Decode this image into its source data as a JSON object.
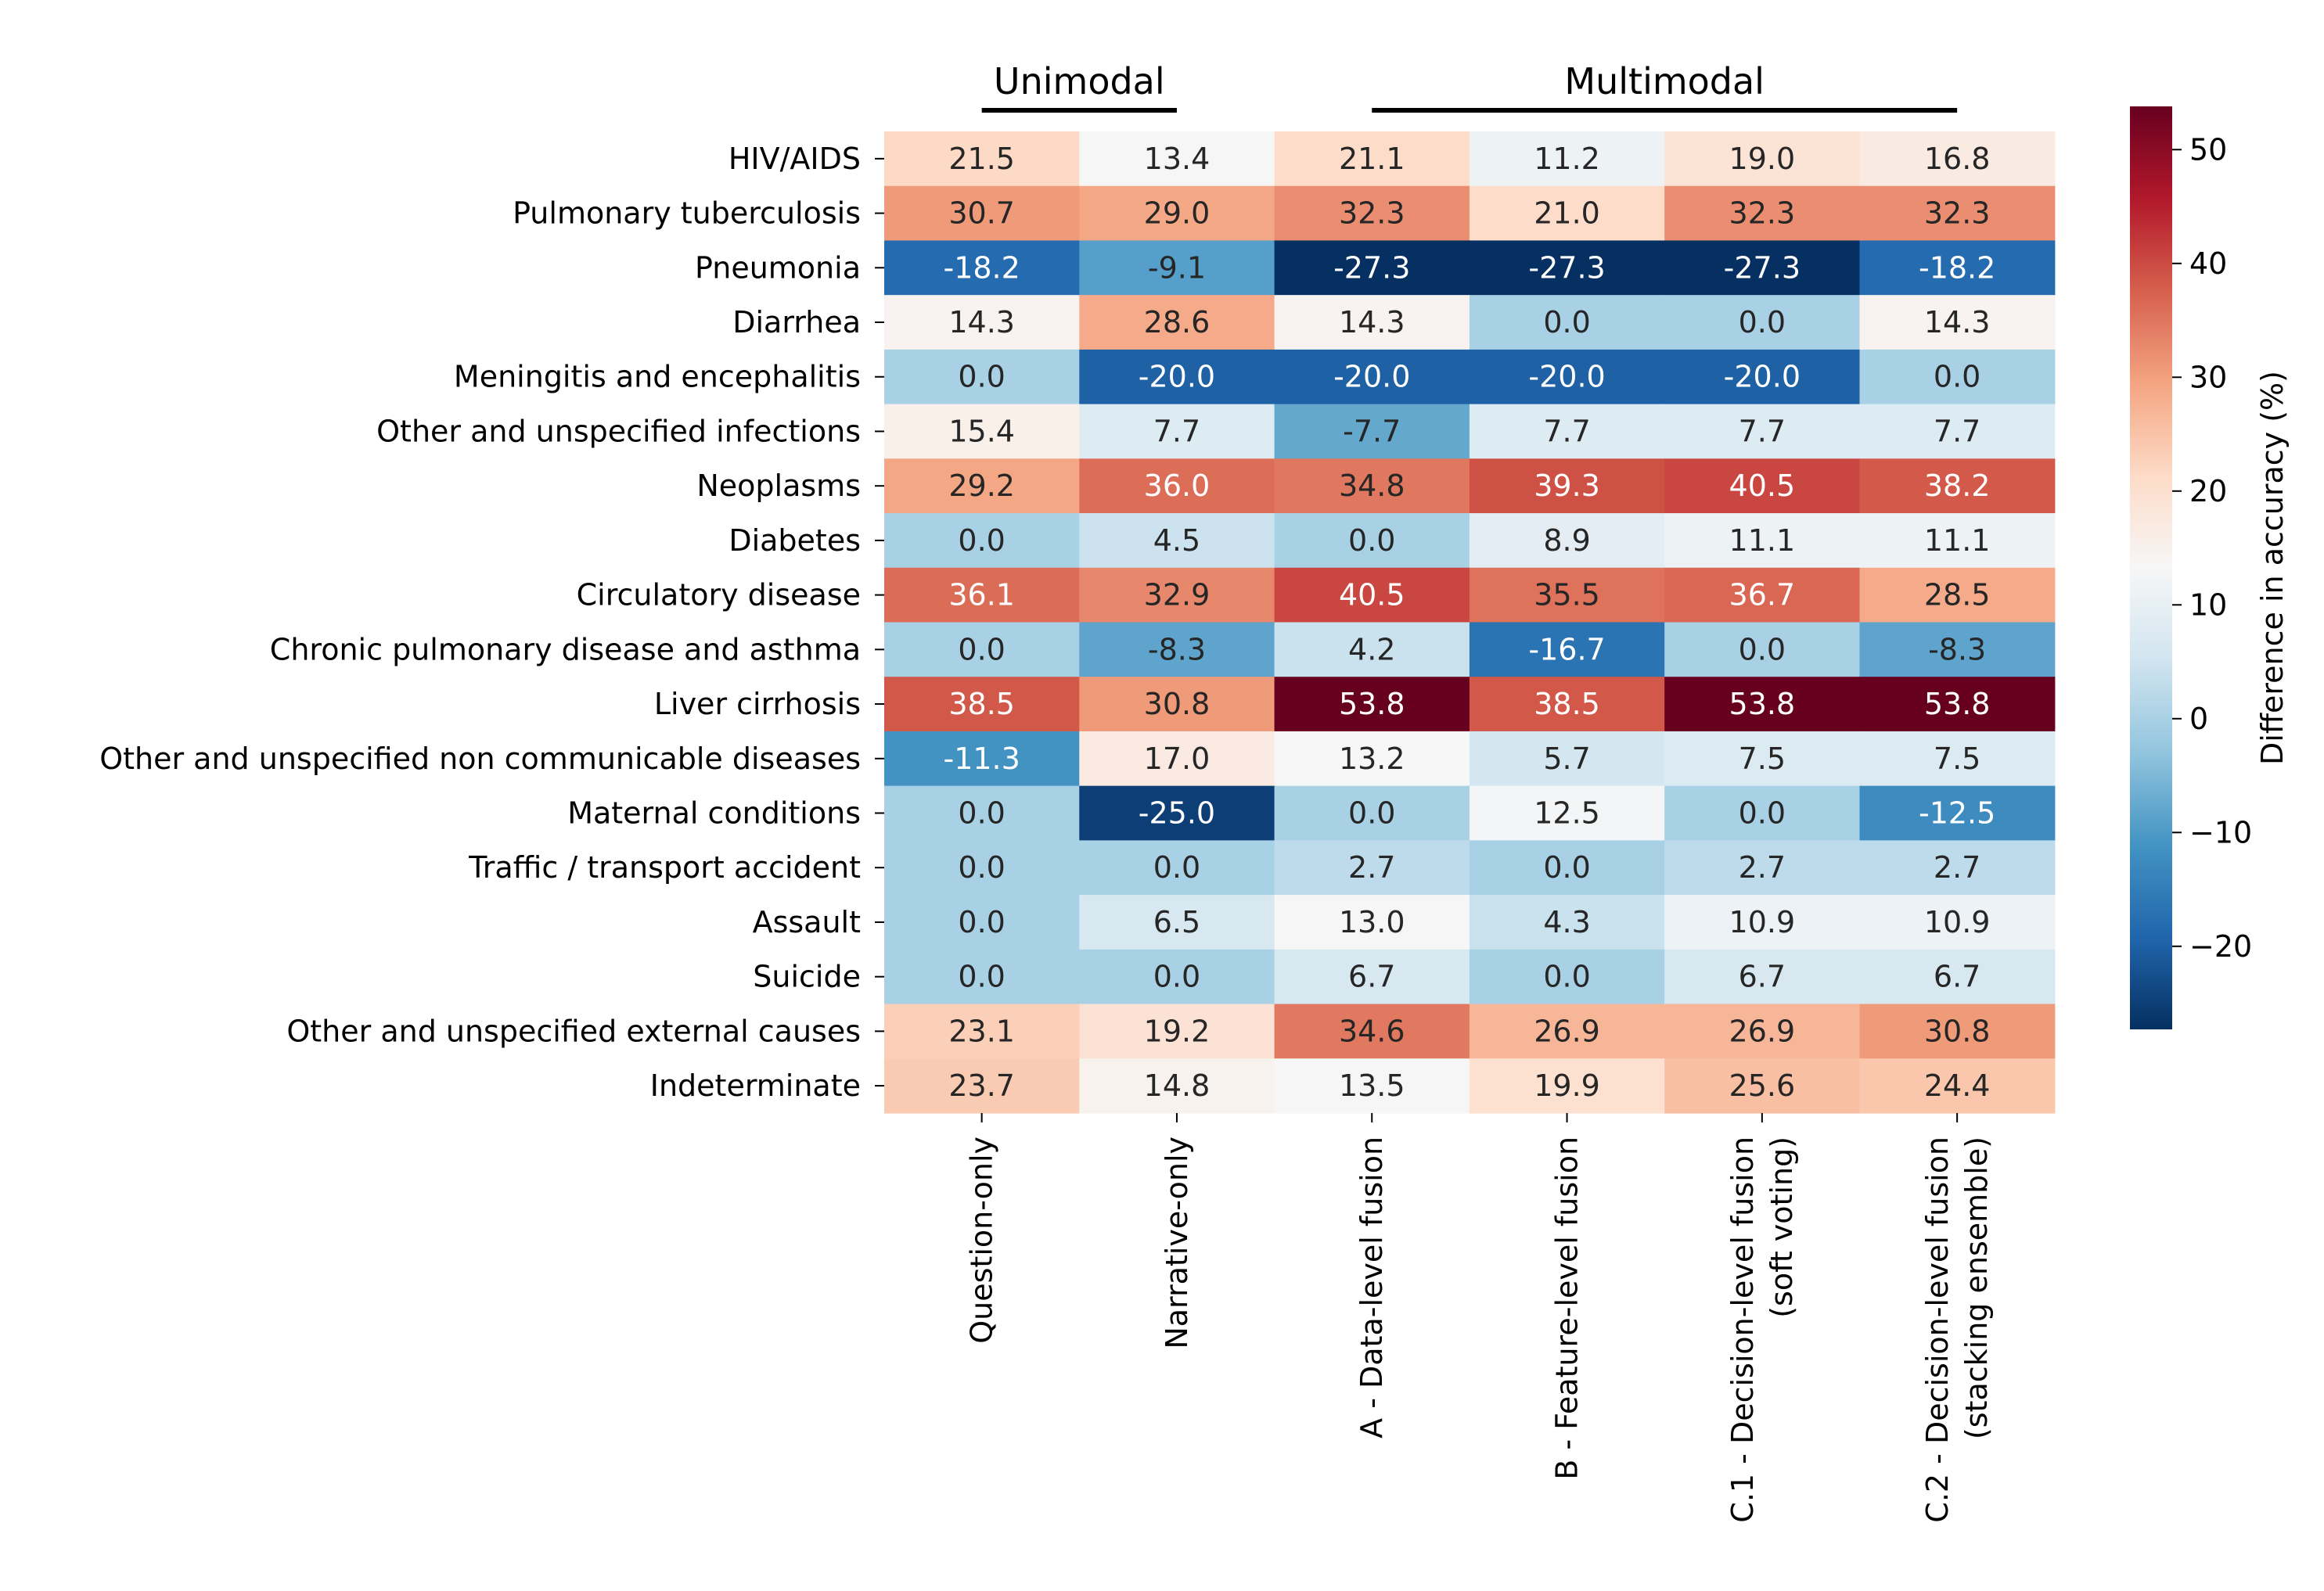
{
  "chart_data": {
    "type": "heatmap",
    "title": "",
    "xlabel": "",
    "ylabel": "",
    "groups": [
      {
        "label": "Unimodal",
        "columns": [
          0,
          1
        ]
      },
      {
        "label": "Multimodal",
        "columns": [
          2,
          3,
          4,
          5
        ]
      }
    ],
    "columns": [
      [
        "Question-only"
      ],
      [
        "Narrative-only"
      ],
      [
        "A - Data-level fusion"
      ],
      [
        "B - Feature-level fusion"
      ],
      [
        "C.1 - Decision-level fusion",
        "(soft voting)"
      ],
      [
        "C.2 - Decision-level fusion",
        "(stacking ensemble)"
      ]
    ],
    "rows": [
      "HIV/AIDS",
      "Pulmonary tuberculosis",
      "Pneumonia",
      "Diarrhea",
      "Meningitis and encephalitis",
      "Other and unspecified infections",
      "Neoplasms",
      "Diabetes",
      "Circulatory disease",
      "Chronic pulmonary disease and asthma",
      "Liver cirrhosis",
      "Other and unspecified non communicable diseases",
      "Maternal conditions",
      "Traffic / transport accident",
      "Assault",
      "Suicide",
      "Other and unspecified external causes",
      "Indeterminate"
    ],
    "values": [
      [
        21.5,
        13.4,
        21.1,
        11.2,
        19.0,
        16.8
      ],
      [
        30.7,
        29.0,
        32.3,
        21.0,
        32.3,
        32.3
      ],
      [
        -18.2,
        -9.1,
        -27.3,
        -27.3,
        -27.3,
        -18.2
      ],
      [
        14.3,
        28.6,
        14.3,
        0.0,
        0.0,
        14.3
      ],
      [
        0.0,
        -20.0,
        -20.0,
        -20.0,
        -20.0,
        0.0
      ],
      [
        15.4,
        7.7,
        -7.7,
        7.7,
        7.7,
        7.7
      ],
      [
        29.2,
        36.0,
        34.8,
        39.3,
        40.5,
        38.2
      ],
      [
        0.0,
        4.5,
        0.0,
        8.9,
        11.1,
        11.1
      ],
      [
        36.1,
        32.9,
        40.5,
        35.5,
        36.7,
        28.5
      ],
      [
        0.0,
        -8.3,
        4.2,
        -16.7,
        0.0,
        -8.3
      ],
      [
        38.5,
        30.8,
        53.8,
        38.5,
        53.8,
        53.8
      ],
      [
        -11.3,
        17.0,
        13.2,
        5.7,
        7.5,
        7.5
      ],
      [
        0.0,
        -25.0,
        0.0,
        12.5,
        0.0,
        -12.5
      ],
      [
        0.0,
        0.0,
        2.7,
        0.0,
        2.7,
        2.7
      ],
      [
        0.0,
        6.5,
        13.0,
        4.3,
        10.9,
        10.9
      ],
      [
        0.0,
        0.0,
        6.7,
        0.0,
        6.7,
        6.7
      ],
      [
        23.1,
        19.2,
        34.6,
        26.9,
        26.9,
        30.8
      ],
      [
        23.7,
        14.8,
        13.5,
        19.9,
        25.6,
        24.4
      ]
    ],
    "colorbar": {
      "label": "Difference in accuracy (%)",
      "vmin": -27.3,
      "vmax": 53.8,
      "ticks": [
        -20,
        -10,
        0,
        10,
        20,
        30,
        40,
        50
      ],
      "tick_labels": [
        "−20",
        "−10",
        "0",
        "10",
        "20",
        "30",
        "40",
        "50"
      ],
      "colormap": "RdBu_r",
      "colors": [
        "#053061",
        "#2166ac",
        "#4393c3",
        "#92c5de",
        "#d1e5f0",
        "#f7f7f7",
        "#fddbc7",
        "#f4a582",
        "#d6604d",
        "#b2182b",
        "#67001f"
      ]
    }
  }
}
